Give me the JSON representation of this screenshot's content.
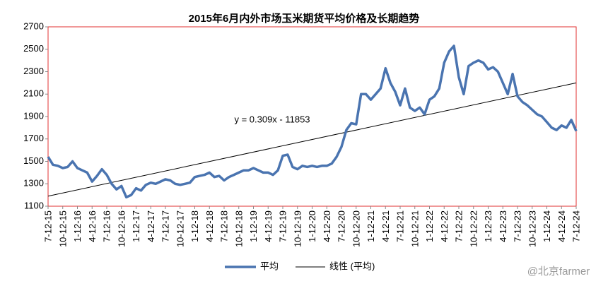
{
  "chart_data": {
    "type": "line",
    "title": "2015年6月内外市场玉米期货平均价格及长期趋势",
    "categories": [
      "7-12-15",
      null,
      null,
      "10-12-15",
      null,
      null,
      "1-12-16",
      null,
      null,
      "4-12-16",
      null,
      null,
      "7-12-16",
      null,
      null,
      "10-12-16",
      null,
      null,
      "1-12-17",
      null,
      null,
      "4-12-17",
      null,
      null,
      "7-12-17",
      null,
      null,
      "10-12-17",
      null,
      null,
      "1-12-18",
      null,
      null,
      "4-12-18",
      null,
      null,
      "7-12-18",
      null,
      null,
      "10-12-18",
      null,
      null,
      "1-12-19",
      null,
      null,
      "4-12-19",
      null,
      null,
      "7-12-19",
      null,
      null,
      "10-12-19",
      null,
      null,
      "1-12-20",
      null,
      null,
      "4-12-20",
      null,
      null,
      "7-12-20",
      null,
      null,
      "10-12-20",
      null,
      null,
      "1-12-21",
      null,
      null,
      "4-12-21",
      null,
      null,
      "7-12-21",
      null,
      null,
      "10-12-21",
      null,
      null,
      "1-12-22",
      null,
      null,
      "4-12-22",
      null,
      null,
      "7-12-22",
      null,
      null,
      "10-12-22",
      null,
      null,
      "1-12-23",
      null,
      null,
      "4-12-23",
      null,
      null,
      "7-12-23",
      null,
      null,
      "10-12-23",
      null,
      null,
      "1-12-24",
      null,
      null,
      "4-12-24",
      null,
      null,
      "7-12-24"
    ],
    "series": [
      {
        "name": "平均",
        "color": "#4a74b0",
        "values": [
          1540,
          1470,
          1460,
          1440,
          1450,
          1500,
          1440,
          1420,
          1400,
          1320,
          1370,
          1430,
          1380,
          1300,
          1250,
          1280,
          1180,
          1200,
          1260,
          1240,
          1290,
          1310,
          1300,
          1320,
          1340,
          1330,
          1300,
          1290,
          1300,
          1310,
          1360,
          1370,
          1380,
          1400,
          1360,
          1370,
          1330,
          1360,
          1380,
          1400,
          1420,
          1420,
          1440,
          1420,
          1400,
          1400,
          1380,
          1420,
          1550,
          1560,
          1450,
          1430,
          1460,
          1450,
          1460,
          1450,
          1460,
          1460,
          1480,
          1540,
          1630,
          1780,
          1840,
          1830,
          2100,
          2100,
          2050,
          2100,
          2150,
          2330,
          2200,
          2120,
          2000,
          2150,
          1980,
          1950,
          1980,
          1920,
          2050,
          2080,
          2150,
          2380,
          2480,
          2530,
          2250,
          2100,
          2350,
          2380,
          2400,
          2380,
          2320,
          2340,
          2300,
          2200,
          2100,
          2280,
          2080,
          2030,
          2000,
          1960,
          1920,
          1900,
          1850,
          1800,
          1780,
          1820,
          1800,
          1870,
          1770
        ]
      }
    ],
    "trendline": {
      "name": "线性 (平均)",
      "color": "#000000",
      "values": [
        1190,
        2200
      ]
    },
    "annotation": "y = 0.309x - 11853",
    "ylim": [
      1100,
      2700
    ],
    "yticks": [
      1100,
      1300,
      1500,
      1700,
      1900,
      2100,
      2300,
      2500,
      2700
    ]
  },
  "watermark": "@北京farmer"
}
